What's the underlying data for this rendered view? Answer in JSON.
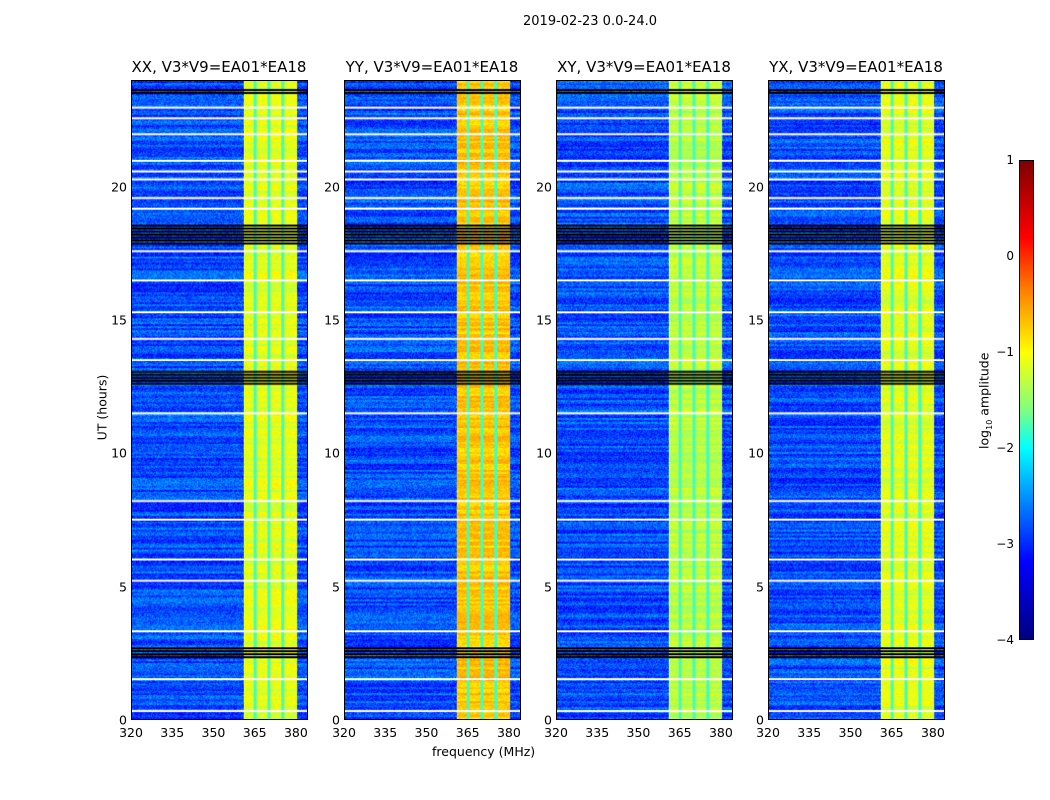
{
  "suptitle": "2019-02-23 0.0-24.0",
  "chart_data": {
    "type": "heatmap",
    "title": "2019-02-23 0.0-24.0",
    "xlabel": "frequency (MHz)",
    "ylabel": "UT (hours)",
    "xlim": [
      320,
      384.4
    ],
    "ylim": [
      0,
      24
    ],
    "xticks": [
      "320",
      "335",
      "350",
      "365",
      "380"
    ],
    "yticks": [
      "0",
      "5",
      "10",
      "15",
      "20"
    ],
    "colorbar": {
      "label": "log10 amplitude",
      "label_main": "log",
      "label_sub": "10",
      "label_rest": " amplitude",
      "range": [
        -4,
        1
      ],
      "ticks": [
        "1",
        "0",
        "−1",
        "−2",
        "−3",
        "−4"
      ],
      "colormap": "jet"
    },
    "band_mhz": [
      361,
      380.5
    ],
    "band_channel_gaps_mhz": [
      365.2,
      370.2,
      375.4
    ],
    "flagged_hours_white": [
      0.3,
      1.5,
      3.3,
      5.2,
      6.0,
      7.5,
      8.2,
      11.5,
      13.5,
      14.3,
      15.3,
      16.5,
      17.6,
      19.2,
      19.6,
      20.3,
      20.6,
      21.0,
      22.0,
      22.6,
      23.0
    ],
    "flagged_hours_black": [
      [
        2.3,
        2.7
      ],
      [
        12.6,
        13.1
      ],
      [
        17.9,
        18.6
      ],
      [
        23.5,
        23.7
      ]
    ],
    "panels": [
      {
        "title": "XX, V3*V9=EA01*EA18",
        "background_level": -3.0,
        "band_level": -1.0
      },
      {
        "title": "YY, V3*V9=EA01*EA18",
        "background_level": -3.0,
        "band_level": -0.6
      },
      {
        "title": "XY, V3*V9=EA01*EA18",
        "background_level": -3.0,
        "band_level": -1.2
      },
      {
        "title": "YX, V3*V9=EA01*EA18",
        "background_level": -3.0,
        "band_level": -1.0
      }
    ]
  }
}
